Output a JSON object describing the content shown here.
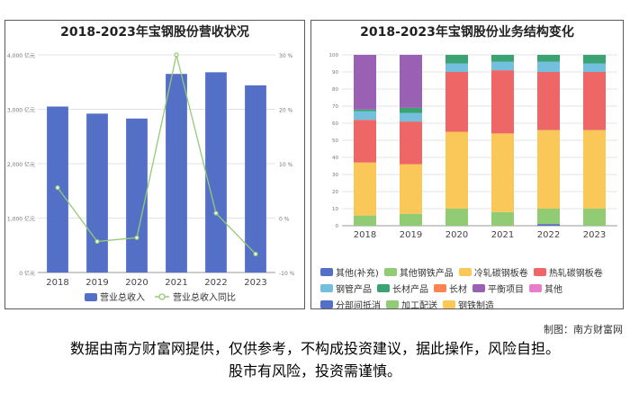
{
  "credit": "制图：南方财富网",
  "disclaimer": {
    "line1": "数据由南方财富网提供，仅供参考，不构成投资建议，据此操作，风险自担。",
    "line2": "股市有风险，投资需谨慎。"
  },
  "chart_data": [
    {
      "type": "bar",
      "title": "2018-2023年宝钢股份营收状况",
      "categories": [
        "2018",
        "2019",
        "2020",
        "2021",
        "2022",
        "2023"
      ],
      "series": [
        {
          "name": "营业总收入",
          "type": "bar",
          "values": [
            3050,
            2920,
            2830,
            3650,
            3680,
            3440
          ],
          "unit": "亿元",
          "axis": "left"
        },
        {
          "name": "营业总收入同比",
          "type": "line",
          "values": [
            5.6,
            -4.3,
            -3.6,
            30,
            0.9,
            -6.6
          ],
          "unit": "%",
          "axis": "right"
        }
      ],
      "y_left": {
        "min": 0,
        "max": 4000,
        "ticks": [
          0,
          1000,
          2000,
          3000,
          4000
        ],
        "tick_labels": [
          "0 亿元",
          "1,000 亿元",
          "2,000 亿元",
          "3,000 亿元",
          "4,000 亿元"
        ]
      },
      "y_right": {
        "min": -10,
        "max": 30,
        "ticks": [
          -10,
          0,
          10,
          20,
          30
        ],
        "tick_labels": [
          "-10 %",
          "0 %",
          "10 %",
          "20 %",
          "30 %"
        ]
      },
      "colors": {
        "bar": "#5470c6",
        "line": "#91cc75"
      },
      "grid": true,
      "legend": "bottom"
    },
    {
      "type": "bar",
      "stacked": true,
      "title": "2018-2023年宝钢股份业务结构变化",
      "categories": [
        "2018",
        "2019",
        "2020",
        "2021",
        "2022",
        "2023"
      ],
      "y": {
        "min": 0,
        "max": 100,
        "ticks": [
          0,
          10,
          20,
          30,
          40,
          50,
          60,
          70,
          80,
          90,
          100
        ]
      },
      "series": [
        {
          "name": "其他(补充)",
          "color": "#5470c6",
          "values": [
            0,
            0,
            0,
            0,
            1,
            0
          ]
        },
        {
          "name": "其他钢铁产品",
          "color": "#91cc75",
          "values": [
            6,
            7,
            10,
            8,
            9,
            10
          ]
        },
        {
          "name": "冷轧碳钢板卷",
          "color": "#fac858",
          "values": [
            31,
            29,
            45,
            46,
            46,
            46
          ]
        },
        {
          "name": "热轧碳钢板卷",
          "color": "#ee6666",
          "values": [
            25,
            25,
            35,
            37,
            34,
            34
          ]
        },
        {
          "name": "钢管产品",
          "color": "#73c0de",
          "values": [
            5,
            5,
            5,
            5,
            6,
            5
          ]
        },
        {
          "name": "长材产品",
          "color": "#3ba272",
          "values": [
            1,
            3,
            5,
            4,
            4,
            5
          ]
        },
        {
          "name": "长材",
          "color": "#fc8452",
          "values": [
            0,
            0,
            0,
            0,
            0,
            0
          ]
        },
        {
          "name": "平衡项目",
          "color": "#9a60b4",
          "values": [
            32,
            31,
            0,
            0,
            0,
            0
          ]
        },
        {
          "name": "其他",
          "color": "#ea7ccc",
          "values": [
            0,
            0,
            0,
            0,
            0,
            0
          ]
        },
        {
          "name": "分部间抵消",
          "color": "#5470c6",
          "values": [
            0,
            0,
            0,
            0,
            0,
            0
          ]
        },
        {
          "name": "加工配送",
          "color": "#91cc75",
          "values": [
            0,
            0,
            0,
            0,
            0,
            0
          ]
        },
        {
          "name": "钢铁制造",
          "color": "#fac858",
          "values": [
            0,
            0,
            0,
            0,
            0,
            0
          ]
        }
      ],
      "grid": true,
      "legend": "bottom"
    }
  ]
}
